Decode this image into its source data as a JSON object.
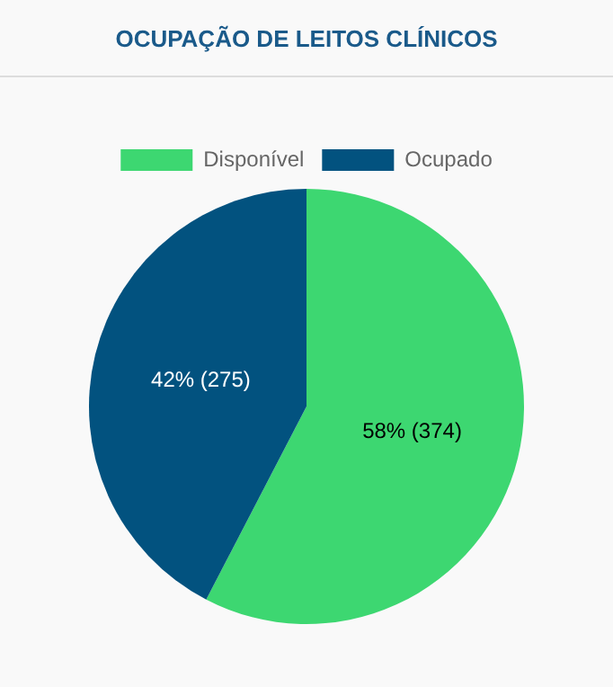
{
  "chart_data": {
    "type": "pie",
    "title": "OCUPAÇÃO DE LEITOS CLÍNICOS",
    "categories": [
      "Disponível",
      "Ocupado"
    ],
    "values": [
      374,
      275
    ],
    "colors": [
      "#3dd771",
      "#02527f"
    ],
    "value_labels": [
      "58% (374)",
      "42% (275)"
    ],
    "legend": "top"
  }
}
